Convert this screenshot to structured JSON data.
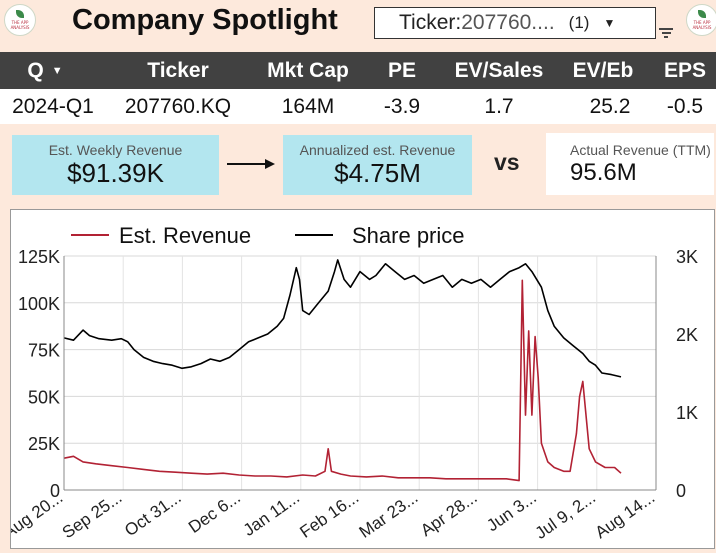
{
  "logo_left": {
    "text": "THE APP ANALYSIS"
  },
  "logo_right": {
    "text": "THE APP ANALYSIS"
  },
  "header": {
    "title": "Company Spotlight",
    "ticker_label": "Ticker: ",
    "ticker_value": "207760....",
    "ticker_count": "(1)"
  },
  "table": {
    "columns": [
      "Q",
      "Ticker",
      "Mkt Cap",
      "PE",
      "EV/Sales",
      "EV/Eb",
      "EPS"
    ],
    "row": [
      "2024-Q1",
      "207760.KQ",
      "164M",
      "-3.9",
      "1.7",
      "25.2",
      "-0.5"
    ]
  },
  "kpis": {
    "weekly": {
      "label": "Est. Weekly Revenue",
      "value": "$91.39K"
    },
    "annualized": {
      "label": "Annualized est. Revenue",
      "value": "$4.75M"
    },
    "vs": "vs",
    "actual": {
      "label": "Actual Revenue (TTM)",
      "value": "95.6M"
    }
  },
  "colors": {
    "revenue": "#b22234",
    "price": "#000000",
    "kpi_box": "#b3e6ef"
  },
  "chart_data": {
    "type": "line",
    "legend": [
      "Est. Revenue",
      "Share price"
    ],
    "legend_position": "top",
    "grid": true,
    "x_ticks": [
      "Aug 20...",
      "Sep 25...",
      "Oct 31...",
      "Dec 6...",
      "Jan 11...",
      "Feb 16...",
      "Mar 23...",
      "Apr 28...",
      "Jun 3...",
      "Jul 9, 2...",
      "Aug 14..."
    ],
    "y_left": {
      "ticks": [
        "0",
        "25K",
        "50K",
        "75K",
        "100K",
        "125K"
      ],
      "range": [
        0,
        125000
      ]
    },
    "y_right": {
      "ticks": [
        "0",
        "1K",
        "2K",
        "3K"
      ],
      "range": [
        0,
        3000
      ]
    },
    "x_range": [
      0,
      372
    ],
    "series": [
      {
        "name": "Share price",
        "axis": "right",
        "points": [
          [
            0,
            1950
          ],
          [
            6,
            1920
          ],
          [
            12,
            2050
          ],
          [
            16,
            1980
          ],
          [
            22,
            1940
          ],
          [
            30,
            1920
          ],
          [
            36,
            1940
          ],
          [
            40,
            1900
          ],
          [
            44,
            1800
          ],
          [
            50,
            1700
          ],
          [
            56,
            1650
          ],
          [
            62,
            1620
          ],
          [
            68,
            1600
          ],
          [
            74,
            1560
          ],
          [
            80,
            1580
          ],
          [
            86,
            1620
          ],
          [
            92,
            1680
          ],
          [
            98,
            1650
          ],
          [
            104,
            1700
          ],
          [
            110,
            1800
          ],
          [
            116,
            1900
          ],
          [
            122,
            1950
          ],
          [
            128,
            2000
          ],
          [
            134,
            2100
          ],
          [
            138,
            2200
          ],
          [
            142,
            2500
          ],
          [
            146,
            2850
          ],
          [
            148,
            2700
          ],
          [
            150,
            2300
          ],
          [
            154,
            2250
          ],
          [
            160,
            2400
          ],
          [
            166,
            2550
          ],
          [
            170,
            2800
          ],
          [
            172,
            2950
          ],
          [
            176,
            2700
          ],
          [
            180,
            2600
          ],
          [
            186,
            2800
          ],
          [
            192,
            2700
          ],
          [
            196,
            2750
          ],
          [
            202,
            2900
          ],
          [
            208,
            2800
          ],
          [
            214,
            2700
          ],
          [
            220,
            2750
          ],
          [
            226,
            2650
          ],
          [
            232,
            2700
          ],
          [
            238,
            2750
          ],
          [
            244,
            2600
          ],
          [
            250,
            2700
          ],
          [
            256,
            2650
          ],
          [
            262,
            2700
          ],
          [
            268,
            2600
          ],
          [
            274,
            2700
          ],
          [
            280,
            2800
          ],
          [
            286,
            2850
          ],
          [
            290,
            2900
          ],
          [
            294,
            2800
          ],
          [
            300,
            2600
          ],
          [
            304,
            2300
          ],
          [
            308,
            2100
          ],
          [
            314,
            1950
          ],
          [
            320,
            1850
          ],
          [
            326,
            1750
          ],
          [
            330,
            1650
          ],
          [
            334,
            1600
          ],
          [
            338,
            1500
          ],
          [
            344,
            1480
          ],
          [
            350,
            1450
          ]
        ]
      },
      {
        "name": "Est. Revenue",
        "axis": "left",
        "points": [
          [
            0,
            17000
          ],
          [
            6,
            18000
          ],
          [
            12,
            15000
          ],
          [
            20,
            14000
          ],
          [
            30,
            13000
          ],
          [
            40,
            12000
          ],
          [
            50,
            11000
          ],
          [
            60,
            10000
          ],
          [
            70,
            9500
          ],
          [
            80,
            9000
          ],
          [
            90,
            8500
          ],
          [
            100,
            9000
          ],
          [
            110,
            8000
          ],
          [
            120,
            7500
          ],
          [
            130,
            7500
          ],
          [
            140,
            7000
          ],
          [
            150,
            8000
          ],
          [
            158,
            7500
          ],
          [
            164,
            10000
          ],
          [
            166,
            22000
          ],
          [
            168,
            10000
          ],
          [
            174,
            8500
          ],
          [
            180,
            7500
          ],
          [
            190,
            7000
          ],
          [
            200,
            7500
          ],
          [
            210,
            6500
          ],
          [
            220,
            6500
          ],
          [
            230,
            6500
          ],
          [
            240,
            6000
          ],
          [
            250,
            6000
          ],
          [
            260,
            6000
          ],
          [
            270,
            6000
          ],
          [
            278,
            6000
          ],
          [
            286,
            5000
          ],
          [
            288,
            112000
          ],
          [
            290,
            40000
          ],
          [
            292,
            85000
          ],
          [
            294,
            40000
          ],
          [
            296,
            82000
          ],
          [
            298,
            60000
          ],
          [
            300,
            25000
          ],
          [
            304,
            15000
          ],
          [
            308,
            12000
          ],
          [
            314,
            10000
          ],
          [
            318,
            10000
          ],
          [
            322,
            30000
          ],
          [
            324,
            50000
          ],
          [
            326,
            58000
          ],
          [
            330,
            22000
          ],
          [
            334,
            15000
          ],
          [
            340,
            12000
          ],
          [
            346,
            12000
          ],
          [
            350,
            9000
          ]
        ]
      }
    ]
  }
}
